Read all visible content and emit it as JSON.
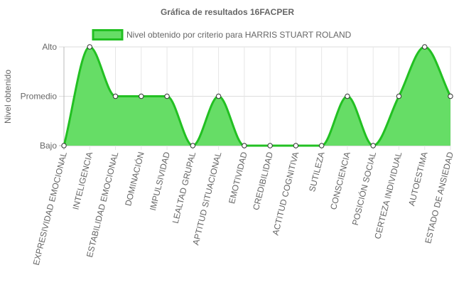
{
  "chart_data": {
    "type": "area",
    "title": "Gráfica de resultados 16FACPER",
    "ylabel": "Nivel obtenido",
    "xlabel": "",
    "y_ticks": [
      "Bajo",
      "Promedio",
      "Alto"
    ],
    "ylim": [
      0,
      2
    ],
    "categories": [
      "EXPRESIVIDAD EMOCIONAL",
      "INTELIGENCIA",
      "ESTABILIDAD EMOCIONAL",
      "DOMINACIÓN",
      "IMPULSIVIDAD",
      "LEALTAD GRUPAL",
      "APTITUD SITUACIONAL",
      "EMOTIVIDAD",
      "CREDIBILIDAD",
      "ACTITUD COGNITIVA",
      "SUTILEZA",
      "CONSCIENCIA",
      "POSICIÓN SOCIAL",
      "CERTEZA INDIVIDUAL",
      "AUTOESTIMA",
      "ESTADO DE ANSIEDAD"
    ],
    "series": [
      {
        "name": "Nivel obtenido por criterio para HARRIS STUART ROLAND",
        "values": [
          0,
          2,
          1,
          1,
          1,
          0,
          1,
          0,
          0,
          0,
          0,
          1,
          0,
          1,
          2,
          1
        ],
        "line_color": "#22c022",
        "fill_color": "#66dd66"
      }
    ],
    "grid": true,
    "legend": "top"
  }
}
